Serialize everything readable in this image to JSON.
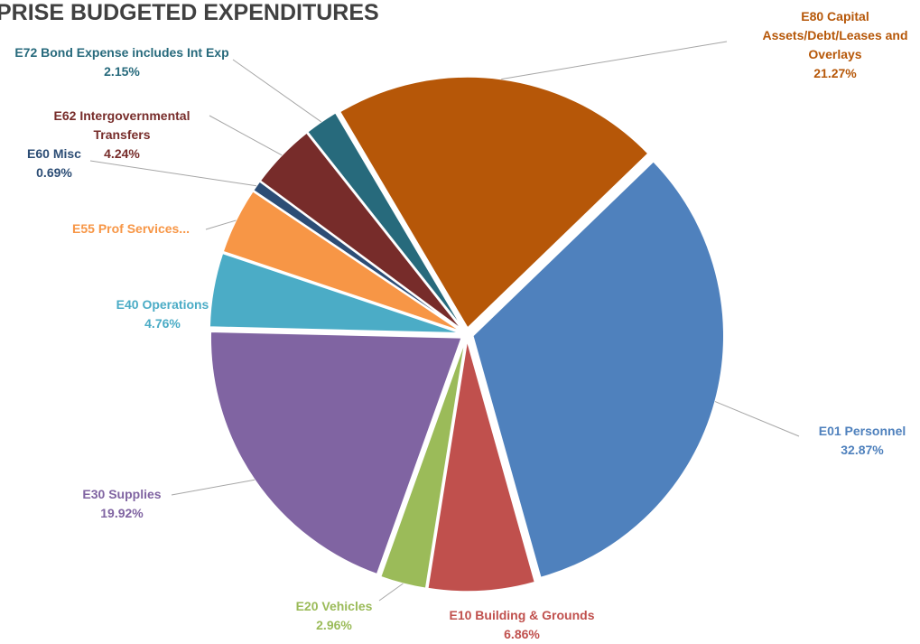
{
  "chart_data": {
    "type": "pie",
    "title": "PRISE BUDGETED EXPENDITURES",
    "categories": [
      "E01 Personnel",
      "E10 Building & Grounds",
      "E20 Vehicles",
      "E30 Supplies",
      "E40 Operations",
      "E55 Prof Services...",
      "E60 Misc",
      "E62 Intergovernmental Transfers",
      "E72 Bond Expense includes Int Exp",
      "E80 Capital Assets/Debt/Leases and Overlays"
    ],
    "values": [
      32.87,
      6.86,
      2.96,
      19.92,
      4.76,
      4.28,
      0.69,
      4.24,
      2.15,
      21.27
    ],
    "value_labels": [
      "32.87%",
      "6.86%",
      "2.96%",
      "19.92%",
      "4.76%",
      null,
      "0.69%",
      "4.24%",
      "2.15%",
      "21.27%"
    ],
    "colors": [
      "#4f81bd",
      "#c0504d",
      "#9bbb59",
      "#8064a2",
      "#4bacc6",
      "#f79646",
      "#2c4d75",
      "#772c2a",
      "#276a7c",
      "#b65708"
    ]
  }
}
